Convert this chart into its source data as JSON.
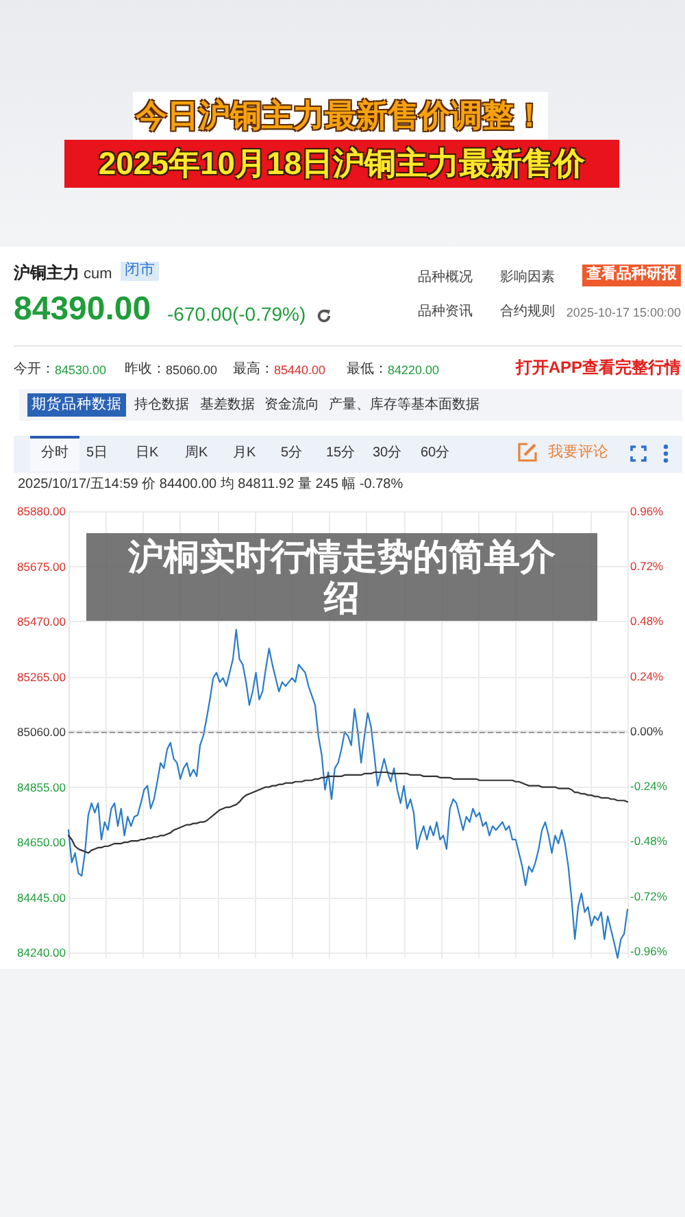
{
  "chart_data": {
    "type": "line",
    "title": "今日沪铜主力最新售价调整！",
    "subtitle": "2025年10月18日沪铜主力最新售价",
    "annotations": [
      "沪铜主力",
      "cum",
      "闭市",
      "84390.00",
      "-670.00(-0.79%)",
      "品种概况",
      "影响因素",
      "查看品种研报",
      "品种资讯",
      "合约规则",
      "2025-10-17 15:00:00",
      "今开：",
      "84530.00",
      "昨收：",
      "85060.00",
      "最高：",
      "85440.00",
      "最低：",
      "84220.00",
      "打开APP查看完整行情",
      "期货品种数据",
      "持仓数据",
      "基差数据",
      "资金流向",
      "产量、库存等基本面数据",
      "分时",
      "5日",
      "日K",
      "周K",
      "月K",
      "5分",
      "15分",
      "30分",
      "60分",
      "我要评论",
      "2025/10/17/五14:59 价 84400.00 均 84811.92 量 245 幅 -0.78%",
      "沪桐实时行情走势的简单介绍"
    ],
    "categories": [
      null,
      null,
      null,
      null,
      null,
      null,
      null,
      null,
      null,
      null,
      null,
      null,
      null,
      null,
      null,
      null,
      null,
      null,
      null,
      null,
      null,
      null,
      null,
      null,
      null,
      null,
      null,
      null,
      null,
      null,
      null,
      null,
      null,
      null,
      null,
      null,
      null,
      null,
      null,
      null,
      null,
      null,
      null,
      null,
      null,
      null,
      null,
      null,
      null,
      null,
      null,
      null,
      null,
      null,
      null,
      null,
      null,
      null,
      null,
      null,
      null,
      null,
      null,
      null,
      null,
      null,
      null,
      null,
      null,
      null,
      null,
      null,
      null,
      null,
      null,
      null,
      null,
      null,
      null,
      null,
      null,
      null,
      null,
      null,
      null,
      null,
      null,
      null,
      null,
      null,
      null,
      null,
      null,
      null,
      null,
      null,
      null,
      null,
      null,
      null,
      null,
      null,
      null,
      null,
      null,
      null,
      null,
      null,
      null,
      null,
      null,
      null,
      null,
      null,
      null,
      null,
      null,
      null,
      null,
      null,
      null,
      null,
      null,
      null,
      null,
      null,
      null,
      null,
      null,
      null,
      null,
      null,
      null,
      null,
      null,
      null,
      null,
      null,
      null,
      null,
      null,
      null,
      null,
      null,
      null,
      null,
      null,
      null,
      null,
      null,
      null,
      null,
      null,
      null,
      null,
      null,
      null,
      null,
      null,
      null,
      null,
      null,
      null,
      null,
      null,
      null,
      null,
      null,
      null,
      null,
      null
    ],
    "series": [
      {
        "color": "#2a7cc6",
        "values": [
          84695,
          84575,
          84610,
          84535,
          84525,
          84610,
          84750,
          84795,
          84760,
          84795,
          84660,
          84725,
          84695,
          84775,
          84795,
          84710,
          84775,
          84675,
          84745,
          84710,
          84745,
          84750,
          84795,
          84845,
          84860,
          84775,
          84810,
          84875,
          84945,
          84925,
          84995,
          85020,
          84960,
          84945,
          84885,
          84925,
          84945,
          84895,
          84920,
          84895,
          85010,
          85045,
          85110,
          85180,
          85260,
          85280,
          85245,
          85260,
          85230,
          85280,
          85330,
          85440,
          85330,
          85310,
          85245,
          85160,
          85210,
          85280,
          85180,
          85210,
          85295,
          85370,
          85310,
          85260,
          85210,
          85245,
          85230,
          85245,
          85260,
          85245,
          85310,
          85295,
          85280,
          85230,
          85195,
          85160,
          85045,
          84975,
          84845,
          84910,
          84810,
          84925,
          84945,
          84995,
          85060,
          85045,
          85010,
          85145,
          85060,
          84945,
          85045,
          85130,
          85080,
          84975,
          84860,
          84910,
          84960,
          84910,
          84875,
          84925,
          84845,
          84795,
          84860,
          84775,
          84810,
          84760,
          84625,
          84675,
          84710,
          84660,
          84710,
          84675,
          84725,
          84660,
          84675,
          84625,
          84775,
          84810,
          84795,
          84745,
          84695,
          84745,
          84725,
          84775,
          84745,
          84760,
          84710,
          84725,
          84675,
          84710,
          84695,
          84710,
          84725,
          84695,
          84710,
          84660,
          84660,
          84610,
          84560,
          84490,
          84560,
          84540,
          84575,
          84625,
          84695,
          84725,
          84675,
          84610,
          84675,
          84645,
          84695,
          84645,
          84560,
          84440,
          84290,
          84410,
          84460,
          84390,
          84410,
          84340,
          84375,
          84360,
          84390,
          84290,
          84375,
          84325,
          84275,
          84220,
          84290,
          84310,
          84400
        ]
      },
      {
        "color": "#333333",
        "values": [
          84675,
          84660,
          84635,
          84625,
          84620,
          84615,
          84610,
          84620,
          84625,
          84630,
          84630,
          84635,
          84635,
          84640,
          84645,
          84645,
          84645,
          84650,
          84650,
          84655,
          84655,
          84655,
          84660,
          84660,
          84665,
          84665,
          84670,
          84670,
          84675,
          84675,
          84680,
          84685,
          84695,
          84700,
          84705,
          84710,
          84715,
          84715,
          84720,
          84720,
          84725,
          84725,
          84730,
          84740,
          84750,
          84760,
          84770,
          84775,
          84780,
          84780,
          84785,
          84790,
          84800,
          84815,
          84825,
          84830,
          84835,
          84840,
          84845,
          84850,
          84855,
          84855,
          84860,
          84860,
          84865,
          84865,
          84870,
          84870,
          84870,
          84875,
          84875,
          84875,
          84880,
          84880,
          84880,
          84885,
          84885,
          84890,
          84890,
          84895,
          84895,
          84895,
          84895,
          84895,
          84900,
          84900,
          84900,
          84900,
          84900,
          84900,
          84905,
          84905,
          84905,
          84910,
          84910,
          84910,
          84910,
          84910,
          84905,
          84905,
          84905,
          84905,
          84905,
          84905,
          84900,
          84900,
          84900,
          84900,
          84895,
          84895,
          84895,
          84895,
          84895,
          84890,
          84890,
          84890,
          84890,
          84885,
          84885,
          84885,
          84885,
          84885,
          84885,
          84885,
          84885,
          84880,
          84880,
          84880,
          84880,
          84880,
          84880,
          84880,
          84880,
          84880,
          84880,
          84880,
          84875,
          84875,
          84870,
          84865,
          84860,
          84860,
          84860,
          84860,
          84855,
          84855,
          84855,
          84855,
          84855,
          84850,
          84850,
          84850,
          84850,
          84845,
          84835,
          84835,
          84830,
          84830,
          84825,
          84825,
          84820,
          84820,
          84815,
          84815,
          84815,
          84810,
          84810,
          84805,
          84805,
          84805,
          84800
        ]
      }
    ],
    "ylim": [
      84220,
      85880
    ],
    "yticks": [
      {
        "value": 84240,
        "label": "84240.00"
      },
      {
        "value": 84445,
        "label": "84445.00"
      },
      {
        "value": 84650,
        "label": "84650.00"
      },
      {
        "value": 84855,
        "label": "84855.00"
      },
      {
        "value": 85060,
        "label": "85060.00"
      },
      {
        "value": 85265,
        "label": "85265.00"
      },
      {
        "value": 85470,
        "label": "85470.00"
      },
      {
        "value": 85675,
        "label": "85675.00"
      },
      {
        "value": 85880,
        "label": "85880.00"
      }
    ],
    "y2lim": [
      -0.99,
      0.96
    ],
    "y2ticks": [
      {
        "value": -0.96,
        "label": "-0.96%"
      },
      {
        "value": -0.72,
        "label": "-0.72%"
      },
      {
        "value": -0.48,
        "label": "-0.48%"
      },
      {
        "value": -0.24,
        "label": "-0.24%"
      },
      {
        "value": 0,
        "label": "0.00%"
      },
      {
        "value": 0.24,
        "label": "0.24%"
      },
      {
        "value": 0.48,
        "label": "0.48%"
      },
      {
        "value": 0.72,
        "label": "0.72%"
      },
      {
        "value": 0.96,
        "label": "0.96%"
      }
    ],
    "ref_lines": [
      {
        "axis": "y",
        "value": 85060,
        "color": "#999999",
        "line_style": "dashed"
      }
    ],
    "grid": true,
    "marker": "none"
  }
}
